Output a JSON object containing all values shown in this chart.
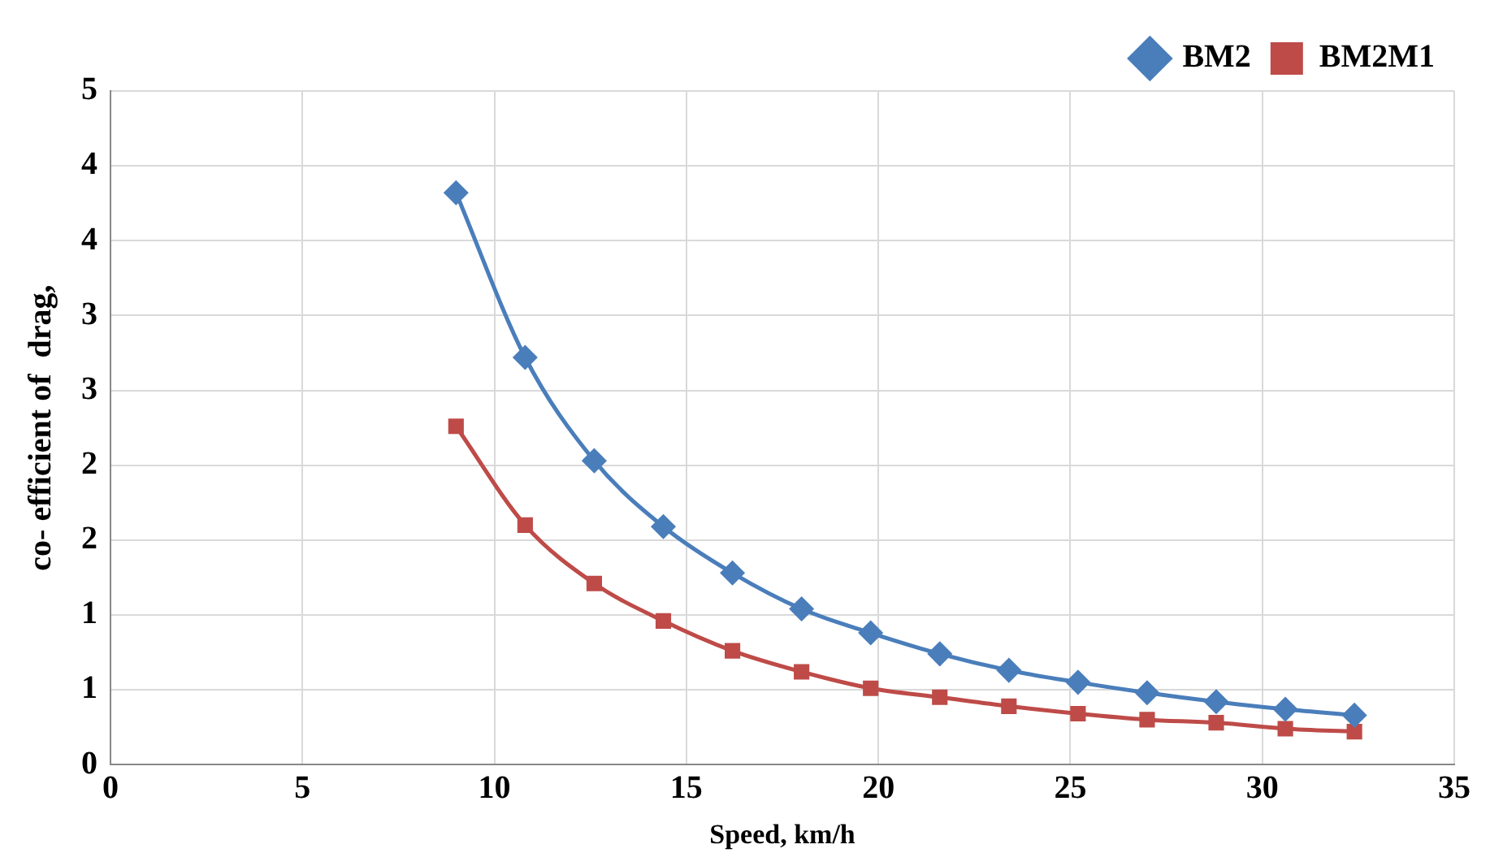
{
  "chart_data": {
    "type": "line",
    "xlabel": "Speed, km/h",
    "ylabel": "co- efficient of  drag,",
    "xlim": [
      0,
      35
    ],
    "xticks": [
      0,
      5,
      10,
      15,
      20,
      25,
      30,
      35
    ],
    "ylim": [
      0,
      4.5
    ],
    "yticks": [
      0,
      {
        "value": 0.5,
        "label": "1"
      },
      1,
      {
        "value": 1.5,
        "label": "2"
      },
      2,
      {
        "value": 2.5,
        "label": "3"
      },
      3,
      {
        "value": 3.5,
        "label": "4"
      },
      4,
      {
        "value": 4.5,
        "label": "5"
      }
    ],
    "x": [
      9,
      10.8,
      12.6,
      14.4,
      16.2,
      18,
      19.8,
      21.6,
      23.4,
      25.2,
      27,
      28.8,
      30.6,
      32.4
    ],
    "grid": true,
    "legend": "top right",
    "series": [
      {
        "name": "BM2",
        "color": "#4a7ebb",
        "marker": "diamond",
        "values": [
          3.82,
          2.72,
          2.03,
          1.59,
          1.28,
          1.04,
          0.88,
          0.74,
          0.63,
          0.55,
          0.48,
          0.42,
          0.37,
          0.33
        ]
      },
      {
        "name": "BM2M1",
        "color": "#be4b48",
        "marker": "square",
        "values": [
          2.26,
          1.6,
          1.21,
          0.96,
          0.76,
          0.62,
          0.51,
          0.45,
          0.39,
          0.34,
          0.3,
          0.28,
          0.24,
          0.22
        ]
      }
    ]
  }
}
